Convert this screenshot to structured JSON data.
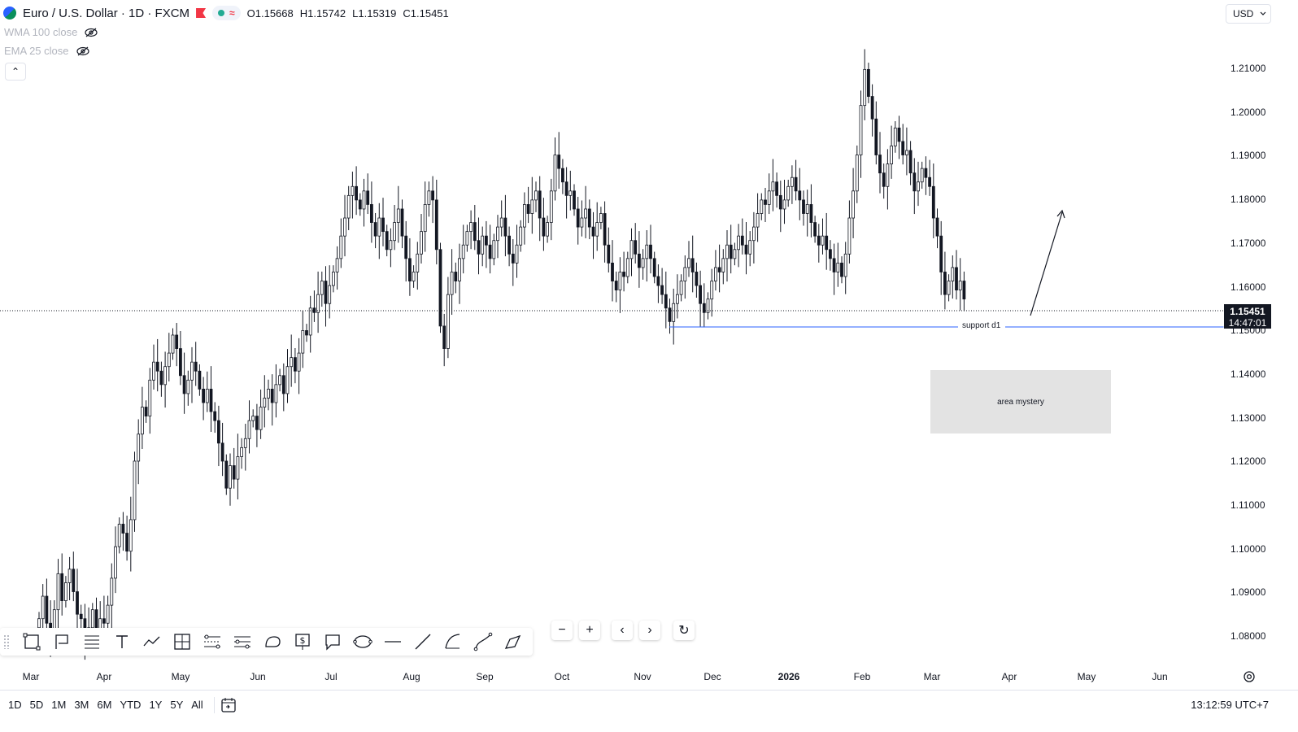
{
  "header": {
    "symbol_title": "Euro / U.S. Dollar · 1D · FXCM",
    "wave_symbol": "≈",
    "ohlc": {
      "open": "O1.15668",
      "high": "H1.15742",
      "low": "L1.15319",
      "close": "C1.15451"
    },
    "indicators": [
      "WMA 100 close",
      "EMA 25 close"
    ],
    "collapse_symbol": "⌃"
  },
  "currency_select": {
    "value": "USD"
  },
  "price_axis": {
    "labels": [
      "1.21000",
      "1.20000",
      "1.19000",
      "1.18000",
      "1.17000",
      "1.16000",
      "1.15000",
      "1.14000",
      "1.13000",
      "1.12000",
      "1.11000",
      "1.10000",
      "1.09000",
      "1.08000"
    ],
    "current_price": "1.15451",
    "countdown": "14:47:01"
  },
  "time_axis": {
    "labels": [
      "Mar",
      "Apr",
      "May",
      "Jun",
      "Jul",
      "Aug",
      "Sep",
      "Oct",
      "Nov",
      "Dec",
      "2026",
      "Feb",
      "Mar",
      "Apr",
      "May",
      "Jun"
    ]
  },
  "annotations": {
    "support_label": "support d1",
    "box_label": "area mystery"
  },
  "zoom_controls": {
    "zoom_out": "−",
    "zoom_in": "+",
    "scroll_left": "‹",
    "scroll_right": "›",
    "reset": "↻"
  },
  "bottom_bar": {
    "ranges": [
      "1D",
      "5D",
      "1M",
      "3M",
      "6M",
      "YTD",
      "1Y",
      "5Y",
      "All"
    ],
    "clock": "13:12:59 UTC+7"
  },
  "colors": {
    "up": "#131722",
    "down": "#131722",
    "grid": "#f0f3fa",
    "accent": "#2962ff",
    "support_line": "#2962ff"
  },
  "chart_data": {
    "type": "candlestick",
    "y_range": [
      1.075,
      1.215
    ],
    "closes": [
      1.083,
      1.088,
      1.082,
      1.079,
      1.085,
      1.093,
      1.087,
      1.091,
      1.094,
      1.089,
      1.084,
      1.083,
      1.079,
      1.081,
      1.085,
      1.079,
      1.083,
      1.082,
      1.086,
      1.092,
      1.099,
      1.104,
      1.102,
      1.098,
      1.105,
      1.118,
      1.124,
      1.13,
      1.128,
      1.136,
      1.14,
      1.138,
      1.135,
      1.139,
      1.142,
      1.146,
      1.143,
      1.137,
      1.133,
      1.136,
      1.14,
      1.138,
      1.134,
      1.131,
      1.134,
      1.129,
      1.127,
      1.122,
      1.118,
      1.112,
      1.117,
      1.114,
      1.119,
      1.121,
      1.123,
      1.127,
      1.128,
      1.125,
      1.13,
      1.132,
      1.134,
      1.131,
      1.135,
      1.137,
      1.133,
      1.139,
      1.141,
      1.138,
      1.142,
      1.147,
      1.146,
      1.152,
      1.151,
      1.155,
      1.158,
      1.153,
      1.157,
      1.16,
      1.163,
      1.168,
      1.172,
      1.177,
      1.179,
      1.176,
      1.174,
      1.178,
      1.175,
      1.171,
      1.168,
      1.172,
      1.169,
      1.165,
      1.167,
      1.171,
      1.174,
      1.168,
      1.163,
      1.158,
      1.16,
      1.164,
      1.169,
      1.175,
      1.178,
      1.176,
      1.165,
      1.148,
      1.143,
      1.155,
      1.16,
      1.158,
      1.163,
      1.166,
      1.169,
      1.171,
      1.167,
      1.164,
      1.168,
      1.166,
      1.163,
      1.167,
      1.17,
      1.172,
      1.168,
      1.164,
      1.162,
      1.166,
      1.17,
      1.175,
      1.173,
      1.176,
      1.178,
      1.172,
      1.168,
      1.171,
      1.178,
      1.186,
      1.183,
      1.18,
      1.177,
      1.178,
      1.174,
      1.17,
      1.172,
      1.174,
      1.17,
      1.168,
      1.171,
      1.173,
      1.166,
      1.162,
      1.158,
      1.156,
      1.16,
      1.159,
      1.163,
      1.167,
      1.164,
      1.161,
      1.163,
      1.166,
      1.163,
      1.159,
      1.157,
      1.155,
      1.152,
      1.149,
      1.153,
      1.155,
      1.158,
      1.161,
      1.163,
      1.16,
      1.157,
      1.153,
      1.151,
      1.154,
      1.158,
      1.161,
      1.16,
      1.163,
      1.166,
      1.163,
      1.165,
      1.168,
      1.166,
      1.164,
      1.167,
      1.17,
      1.173,
      1.176,
      1.175,
      1.178,
      1.18,
      1.177,
      1.174,
      1.176,
      1.179,
      1.181,
      1.178,
      1.176,
      1.173,
      1.175,
      1.171,
      1.168,
      1.166,
      1.168,
      1.165,
      1.163,
      1.16,
      1.162,
      1.159,
      1.164,
      1.172,
      1.178,
      1.186,
      1.197,
      1.205,
      1.199,
      1.194,
      1.186,
      1.182,
      1.179,
      1.184,
      1.188,
      1.192,
      1.189,
      1.186,
      1.187,
      1.182,
      1.178,
      1.18,
      1.183,
      1.181,
      1.179,
      1.172,
      1.168,
      1.16,
      1.155,
      1.158,
      1.161,
      1.156,
      1.158,
      1.154
    ]
  }
}
